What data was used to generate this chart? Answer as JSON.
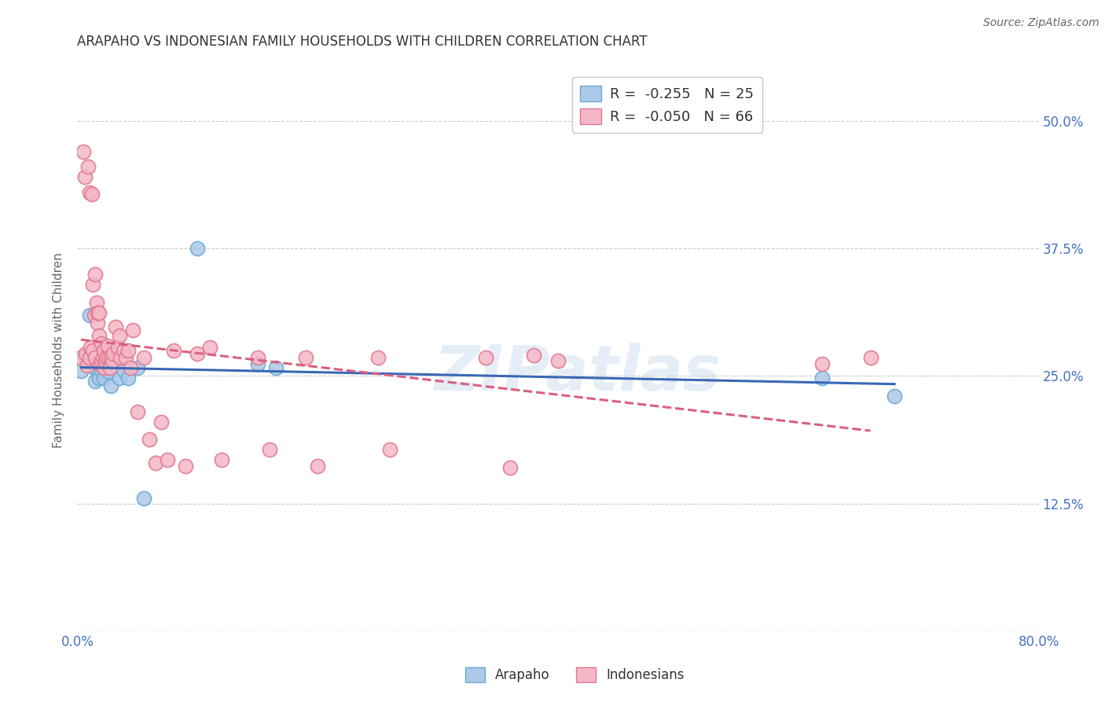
{
  "title": "ARAPAHO VS INDONESIAN FAMILY HOUSEHOLDS WITH CHILDREN CORRELATION CHART",
  "source": "Source: ZipAtlas.com",
  "ylabel": "Family Households with Children",
  "watermark": "ZIPatlas",
  "legend_R_arapaho": "-0.255",
  "legend_N_arapaho": "25",
  "legend_R_indonesian": "-0.050",
  "legend_N_indonesian": "66",
  "xlim": [
    0.0,
    0.8
  ],
  "ylim": [
    0.0,
    0.55
  ],
  "xticks": [
    0.0,
    0.1,
    0.2,
    0.3,
    0.4,
    0.5,
    0.6,
    0.7,
    0.8
  ],
  "xticklabels": [
    "0.0%",
    "",
    "",
    "",
    "",
    "",
    "",
    "",
    "80.0%"
  ],
  "yticks": [
    0.0,
    0.125,
    0.25,
    0.375,
    0.5
  ],
  "yticklabels_right": [
    "",
    "12.5%",
    "25.0%",
    "37.5%",
    "50.0%"
  ],
  "arapaho_color": "#adc8e8",
  "arapaho_edge": "#6aaad4",
  "indonesian_color": "#f5b8c8",
  "indonesian_edge": "#e07890",
  "trendline_arapaho": "#3a68b4",
  "trendline_indonesian": "#d96080",
  "background": "#ffffff",
  "grid_color": "#cccccc",
  "arapaho_x": [
    0.003,
    0.006,
    0.008,
    0.01,
    0.012,
    0.014,
    0.015,
    0.016,
    0.018,
    0.02,
    0.022,
    0.024,
    0.026,
    0.028,
    0.03,
    0.035,
    0.038,
    0.042,
    0.05,
    0.055,
    0.1,
    0.15,
    0.165,
    0.62,
    0.68
  ],
  "arapaho_y": [
    0.255,
    0.27,
    0.265,
    0.31,
    0.268,
    0.258,
    0.245,
    0.258,
    0.248,
    0.256,
    0.248,
    0.262,
    0.254,
    0.24,
    0.26,
    0.248,
    0.256,
    0.248,
    0.258,
    0.13,
    0.375,
    0.262,
    0.258,
    0.248,
    0.23
  ],
  "indonesian_x": [
    0.003,
    0.005,
    0.006,
    0.007,
    0.008,
    0.009,
    0.01,
    0.01,
    0.011,
    0.012,
    0.013,
    0.013,
    0.014,
    0.015,
    0.015,
    0.016,
    0.017,
    0.017,
    0.018,
    0.018,
    0.019,
    0.02,
    0.02,
    0.021,
    0.022,
    0.022,
    0.023,
    0.024,
    0.025,
    0.026,
    0.027,
    0.028,
    0.029,
    0.03,
    0.032,
    0.034,
    0.035,
    0.036,
    0.038,
    0.04,
    0.042,
    0.044,
    0.046,
    0.05,
    0.055,
    0.06,
    0.065,
    0.07,
    0.075,
    0.08,
    0.09,
    0.1,
    0.11,
    0.12,
    0.15,
    0.16,
    0.19,
    0.2,
    0.25,
    0.26,
    0.34,
    0.36,
    0.38,
    0.4,
    0.62,
    0.66
  ],
  "indonesian_y": [
    0.268,
    0.47,
    0.445,
    0.272,
    0.26,
    0.455,
    0.43,
    0.268,
    0.278,
    0.428,
    0.275,
    0.34,
    0.31,
    0.35,
    0.268,
    0.322,
    0.302,
    0.312,
    0.29,
    0.312,
    0.262,
    0.265,
    0.282,
    0.268,
    0.275,
    0.258,
    0.265,
    0.268,
    0.28,
    0.268,
    0.258,
    0.268,
    0.265,
    0.272,
    0.298,
    0.278,
    0.29,
    0.268,
    0.275,
    0.268,
    0.275,
    0.258,
    0.295,
    0.215,
    0.268,
    0.188,
    0.165,
    0.205,
    0.168,
    0.275,
    0.162,
    0.272,
    0.278,
    0.168,
    0.268,
    0.178,
    0.268,
    0.162,
    0.268,
    0.178,
    0.268,
    0.16,
    0.27,
    0.265,
    0.262,
    0.268
  ]
}
